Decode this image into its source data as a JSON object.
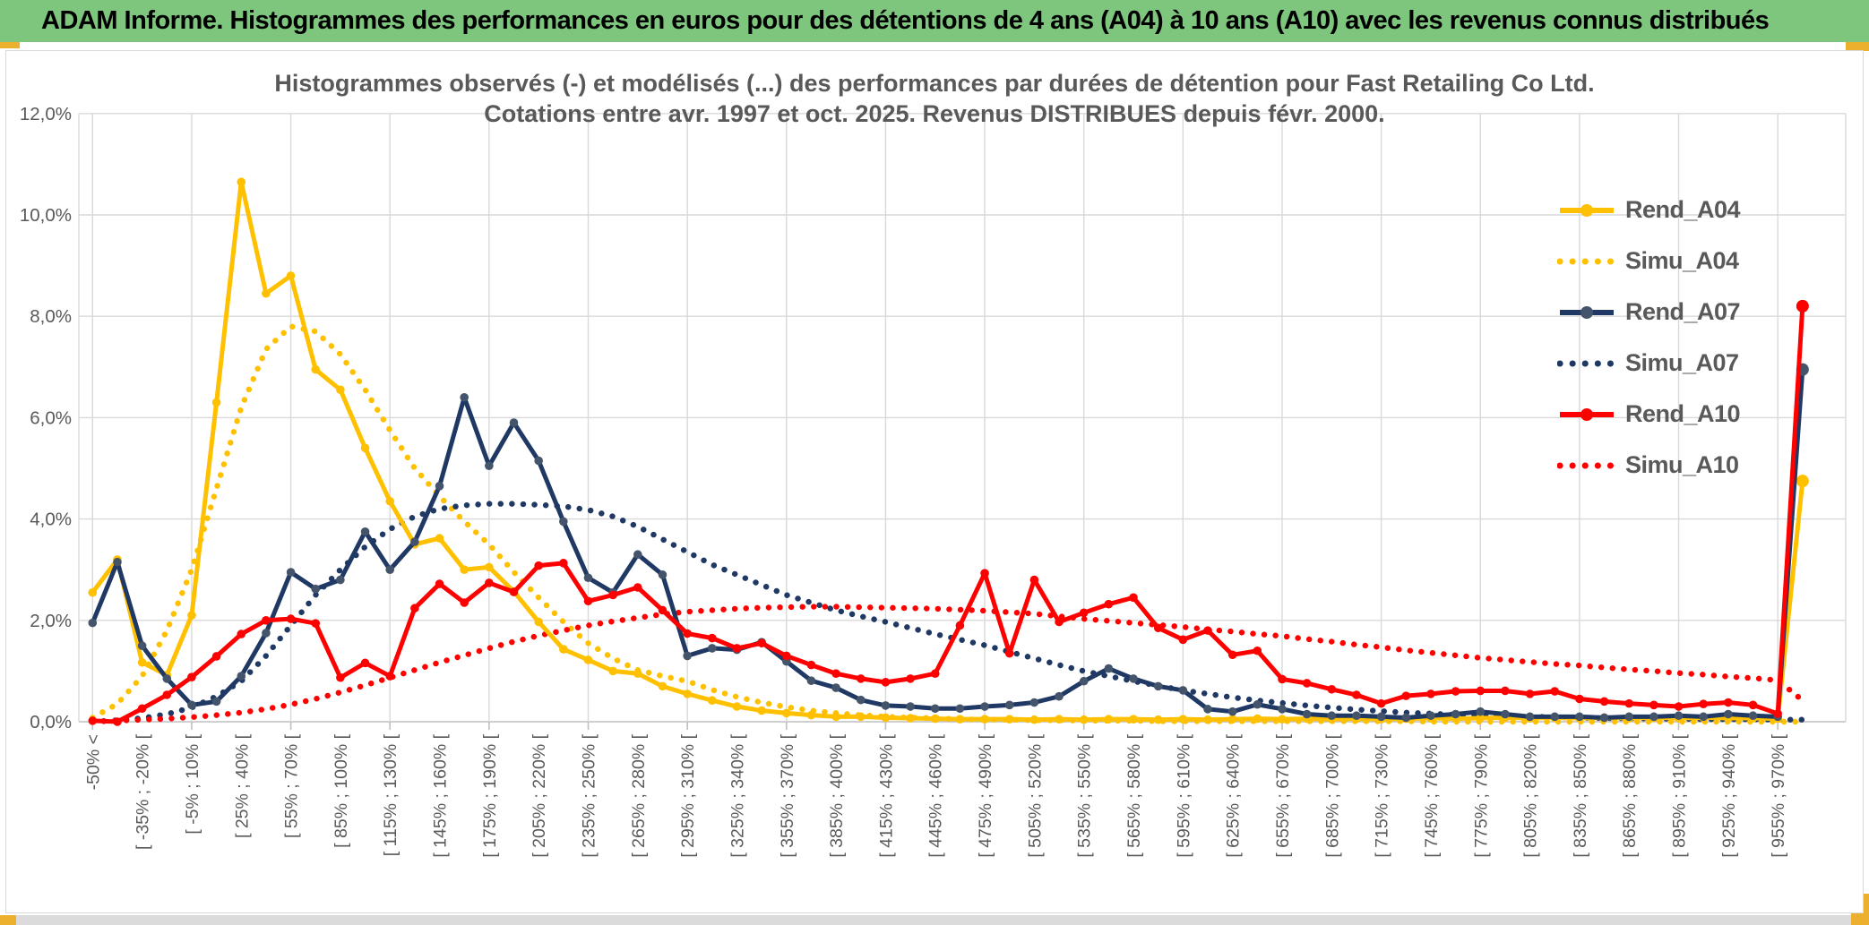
{
  "header": {
    "title": "ADAM Informe. Histogrammes des performances en euros pour des détentions de 4 ans (A04) à 10 ans (A10) avec les revenus connus distribués"
  },
  "chart_data": {
    "type": "line",
    "title_line1": "Histogrammes observés (-) et modélisés (...) des performances par durées de détention pour Fast Retailing Co Ltd.",
    "title_line2": "Cotations entre avr. 1997 et oct. 2025. Revenus DISTRIBUES depuis févr. 2000.",
    "ylim": [
      0,
      12
    ],
    "y_tick_labels": [
      "0,0%",
      "2,0%",
      "4,0%",
      "6,0%",
      "8,0%",
      "10,0%",
      "12,0%"
    ],
    "grid": true,
    "legend_position": "right-top",
    "x_axis_note": "bins of 15% width; axis labels shown every other bin",
    "categories": [
      "-50% <",
      "[ -35% ; -20% [",
      "[ -5% ; 10% [",
      "[ 25% ; 40% [",
      "[ 55% ; 70% [",
      "[ 85% ; 100% [",
      "[ 115% ; 130% [",
      "[ 145% ; 160% [",
      "[ 175% ; 190% [",
      "[ 205% ; 220% [",
      "[ 235% ; 250% [",
      "[ 265% ; 280% [",
      "[ 295% ; 310% [",
      "[ 325% ; 340% [",
      "[ 355% ; 370% [",
      "[ 385% ; 400% [",
      "[ 415% ; 430% [",
      "[ 445% ; 460% [",
      "[ 475% ; 490% [",
      "[ 505% ; 520% [",
      "[ 535% ; 550% [",
      "[ 565% ; 580% [",
      "[ 595% ; 610% [",
      "[ 625% ; 640% [",
      "[ 655% ; 670% [",
      "[ 685% ; 700% [",
      "[ 715% ; 730% [",
      "[ 745% ; 760% [",
      "[ 775% ; 790% [",
      "[ 805% ; 820% [",
      "[ 835% ; 850% [",
      "[ 865% ; 880% [",
      "[ 895% ; 910% [",
      "[ 925% ; 940% [",
      "[ 955% ; 970% ["
    ],
    "series": [
      {
        "name": "Rend_A04",
        "style": "solid",
        "color": "#FFC000",
        "marker_color": "#FFC000",
        "values": [
          2.55,
          3.2,
          1.17,
          0.92,
          2.1,
          6.3,
          10.65,
          8.45,
          8.8,
          6.95,
          6.55,
          5.4,
          4.35,
          3.5,
          3.62,
          3.0,
          3.05,
          2.57,
          1.97,
          1.43,
          1.22,
          1.0,
          0.95,
          0.7,
          0.55,
          0.42,
          0.3,
          0.22,
          0.17,
          0.13,
          0.1,
          0.1,
          0.08,
          0.07,
          0.06,
          0.05,
          0.05,
          0.05,
          0.04,
          0.05,
          0.04,
          0.05,
          0.05,
          0.04,
          0.05,
          0.04,
          0.05,
          0.06,
          0.05,
          0.06,
          0.05,
          0.06,
          0.05,
          0.06,
          0.07,
          0.06,
          0.07,
          0.08,
          0.07,
          0.08,
          0.07,
          0.08,
          0.07,
          0.08,
          0.07,
          0.08,
          0.07,
          0.07,
          0.06,
          4.75
        ]
      },
      {
        "name": "Simu_A04",
        "style": "dotted",
        "color": "#FFC000",
        "marker_color": "#FFC000",
        "values": [
          0.08,
          0.35,
          0.9,
          1.8,
          3.0,
          4.6,
          6.2,
          7.35,
          7.8,
          7.7,
          7.25,
          6.55,
          5.75,
          5.0,
          4.45,
          3.95,
          3.5,
          2.95,
          2.45,
          1.97,
          1.55,
          1.25,
          1.02,
          0.9,
          0.8,
          0.63,
          0.49,
          0.38,
          0.29,
          0.22,
          0.17,
          0.13,
          0.1,
          0.08,
          0.07,
          0.05,
          0.04,
          0.04,
          0.03,
          0.03,
          0.02,
          0.02,
          0.02,
          0.01,
          0.01,
          0.01,
          0.01,
          0.01,
          0.01,
          0.01,
          0.01,
          0.01,
          0.01,
          0.01,
          0.0,
          0.0,
          0.0,
          0.0,
          0.0,
          0.0,
          0.0,
          0.0,
          0.0,
          0.0,
          0.0,
          0.0,
          0.0,
          0.0,
          0.0,
          0.0
        ]
      },
      {
        "name": "Rend_A07",
        "style": "solid",
        "color": "#1F3864",
        "marker_color": "#44546A",
        "values": [
          1.95,
          3.15,
          1.5,
          0.85,
          0.33,
          0.4,
          0.9,
          1.75,
          2.95,
          2.62,
          2.8,
          3.75,
          3.0,
          3.55,
          4.65,
          6.4,
          5.05,
          5.9,
          5.15,
          3.95,
          2.84,
          2.55,
          3.3,
          2.9,
          1.3,
          1.45,
          1.42,
          1.57,
          1.19,
          0.81,
          0.67,
          0.43,
          0.32,
          0.3,
          0.26,
          0.26,
          0.3,
          0.33,
          0.38,
          0.5,
          0.8,
          1.05,
          0.85,
          0.7,
          0.62,
          0.25,
          0.2,
          0.34,
          0.25,
          0.15,
          0.12,
          0.12,
          0.1,
          0.08,
          0.12,
          0.15,
          0.2,
          0.15,
          0.1,
          0.1,
          0.1,
          0.08,
          0.1,
          0.1,
          0.12,
          0.1,
          0.15,
          0.12,
          0.1,
          6.95
        ]
      },
      {
        "name": "Simu_A07",
        "style": "dotted",
        "color": "#1F3864",
        "marker_color": "#1F3864",
        "values": [
          0.0,
          0.03,
          0.07,
          0.15,
          0.28,
          0.5,
          0.8,
          1.3,
          1.9,
          2.5,
          3.0,
          3.45,
          3.8,
          4.05,
          4.2,
          4.27,
          4.3,
          4.3,
          4.28,
          4.25,
          4.18,
          4.05,
          3.85,
          3.6,
          3.35,
          3.1,
          2.9,
          2.7,
          2.5,
          2.35,
          2.2,
          2.08,
          1.97,
          1.85,
          1.73,
          1.62,
          1.51,
          1.38,
          1.25,
          1.12,
          1.0,
          0.9,
          0.8,
          0.71,
          0.62,
          0.55,
          0.48,
          0.42,
          0.37,
          0.32,
          0.28,
          0.24,
          0.21,
          0.18,
          0.16,
          0.14,
          0.13,
          0.11,
          0.1,
          0.09,
          0.08,
          0.07,
          0.07,
          0.06,
          0.06,
          0.05,
          0.05,
          0.05,
          0.04,
          0.04
        ]
      },
      {
        "name": "Rend_A10",
        "style": "solid",
        "color": "#FF0000",
        "marker_color": "#FF0000",
        "values": [
          0.02,
          0.0,
          0.26,
          0.53,
          0.88,
          1.29,
          1.73,
          2.0,
          2.03,
          1.94,
          0.87,
          1.16,
          0.9,
          2.24,
          2.72,
          2.35,
          2.74,
          2.56,
          3.08,
          3.13,
          2.38,
          2.5,
          2.65,
          2.2,
          1.74,
          1.65,
          1.45,
          1.55,
          1.3,
          1.12,
          0.95,
          0.85,
          0.78,
          0.85,
          0.95,
          1.9,
          2.93,
          1.35,
          2.8,
          1.97,
          2.15,
          2.32,
          2.45,
          1.85,
          1.62,
          1.8,
          1.32,
          1.4,
          0.84,
          0.76,
          0.64,
          0.53,
          0.36,
          0.51,
          0.55,
          0.6,
          0.61,
          0.61,
          0.55,
          0.6,
          0.45,
          0.4,
          0.36,
          0.33,
          0.3,
          0.35,
          0.38,
          0.33,
          0.16,
          8.2
        ]
      },
      {
        "name": "Simu_A10",
        "style": "dotted",
        "color": "#FF0000",
        "marker_color": "#FF0000",
        "values": [
          0.0,
          0.02,
          0.04,
          0.06,
          0.09,
          0.13,
          0.18,
          0.25,
          0.34,
          0.45,
          0.58,
          0.72,
          0.87,
          1.02,
          1.17,
          1.31,
          1.45,
          1.58,
          1.7,
          1.8,
          1.9,
          1.98,
          2.05,
          2.12,
          2.17,
          2.2,
          2.23,
          2.25,
          2.26,
          2.27,
          2.27,
          2.26,
          2.25,
          2.24,
          2.23,
          2.21,
          2.19,
          2.16,
          2.13,
          2.08,
          2.03,
          1.99,
          1.95,
          1.91,
          1.87,
          1.82,
          1.78,
          1.73,
          1.69,
          1.63,
          1.58,
          1.52,
          1.47,
          1.41,
          1.36,
          1.31,
          1.26,
          1.22,
          1.18,
          1.14,
          1.11,
          1.07,
          1.03,
          1.0,
          0.96,
          0.93,
          0.89,
          0.86,
          0.82,
          0.42
        ]
      }
    ]
  }
}
